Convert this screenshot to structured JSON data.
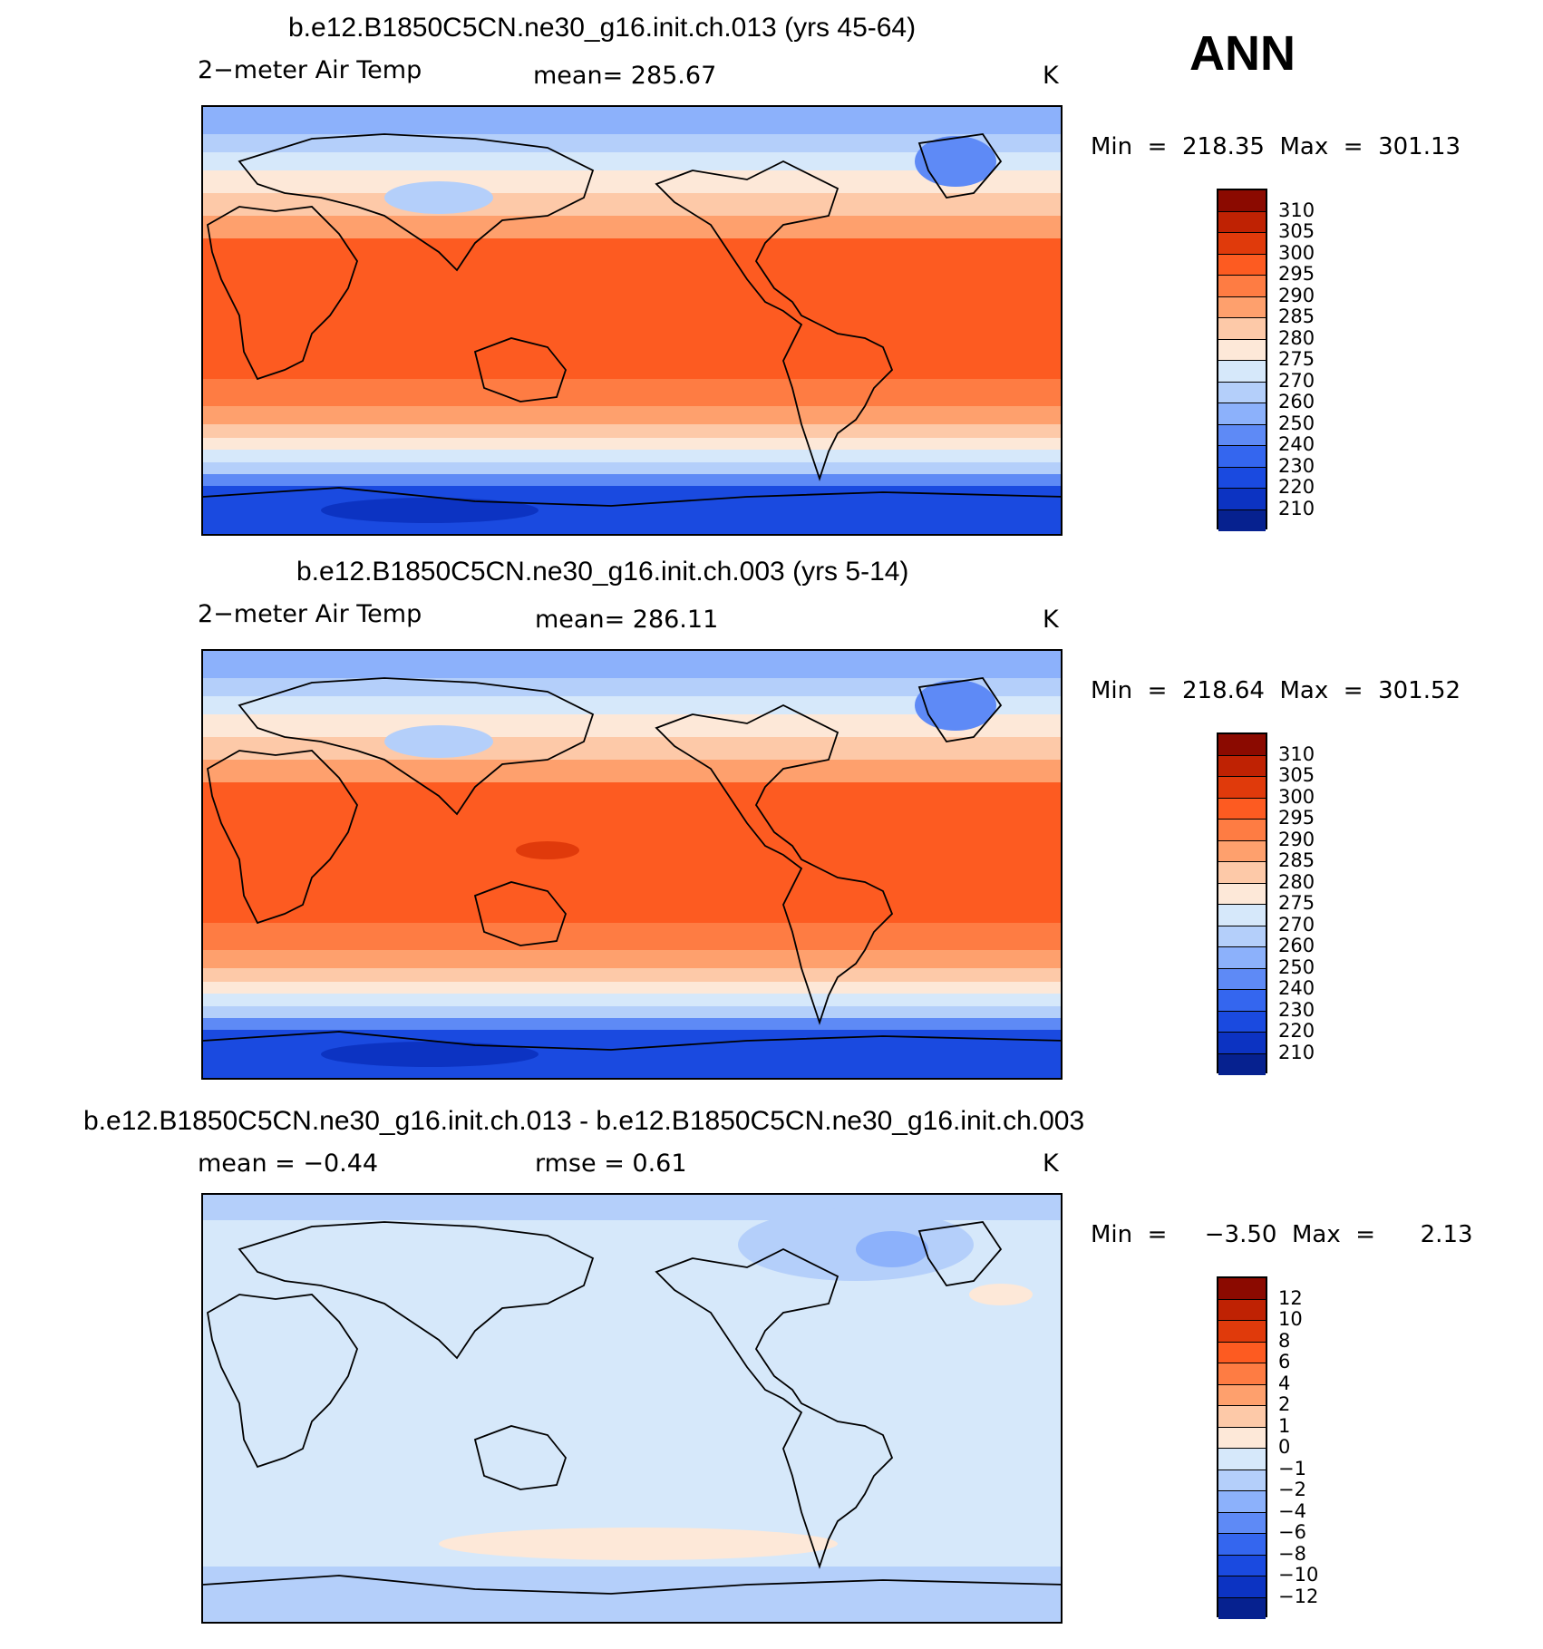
{
  "season": "ANN",
  "panels": [
    {
      "title": "b.e12.B1850C5CN.ne30_g16.init.ch.013 (yrs 45-64)",
      "variable": "2−meter Air Temp",
      "stat": "mean=  285.67",
      "units": "K",
      "minmax": "Min  =  218.35  Max  =  301.13",
      "colorbar_labels": [
        "310",
        "305",
        "300",
        "295",
        "290",
        "285",
        "280",
        "275",
        "270",
        "260",
        "250",
        "240",
        "230",
        "220",
        "210"
      ]
    },
    {
      "title": "b.e12.B1850C5CN.ne30_g16.init.ch.003 (yrs 5-14)",
      "variable": "2−meter Air Temp",
      "stat": "mean=  286.11",
      "units": "K",
      "minmax": "Min  =  218.64  Max  =  301.52",
      "colorbar_labels": [
        "310",
        "305",
        "300",
        "295",
        "290",
        "285",
        "280",
        "275",
        "270",
        "260",
        "250",
        "240",
        "230",
        "220",
        "210"
      ]
    },
    {
      "title": "b.e12.B1850C5CN.ne30_g16.init.ch.013 - b.e12.B1850C5CN.ne30_g16.init.ch.003",
      "variable": "mean  =     −0.44",
      "stat": "rmse  =     0.61",
      "units": "K",
      "minmax": "Min  =     −3.50  Max  =      2.13",
      "colorbar_labels": [
        "12",
        "10",
        "8",
        "6",
        "4",
        "2",
        "1",
        "0",
        "−1",
        "−2",
        "−4",
        "−6",
        "−8",
        "−10",
        "−12"
      ]
    }
  ],
  "colors": {
    "abs_scale": [
      "#8b0a00",
      "#bf2203",
      "#e03a0b",
      "#fd5b21",
      "#fe7c43",
      "#fea06d",
      "#fdc9a8",
      "#fde8d8",
      "#d6e8fa",
      "#b4cffa",
      "#8cb1fb",
      "#5e8af6",
      "#3466ef",
      "#1a4ae0",
      "#0c33c2",
      "#06218f"
    ],
    "diff_scale": [
      "#8b0a00",
      "#bf2203",
      "#e03a0b",
      "#fd5b21",
      "#fe7c43",
      "#fea06d",
      "#fdc9a8",
      "#fde8d8",
      "#d6e8fa",
      "#b4cffa",
      "#8cb1fb",
      "#5e8af6",
      "#3466ef",
      "#1a4ae0",
      "#0c33c2",
      "#06218f"
    ]
  }
}
